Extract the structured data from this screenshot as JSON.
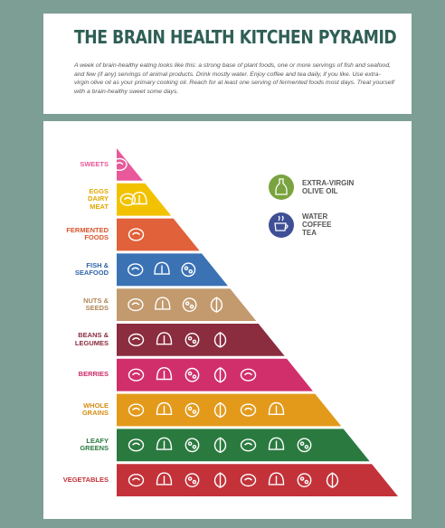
{
  "header": {
    "title": "THE BRAIN HEALTH KITCHEN PYRAMID",
    "intro": "A week of brain-healthy eating looks like this: a strong base of plant foods, one or more servings of fish and seafood, and few (if any) servings of animal products. Drink mostly water. Enjoy coffee and tea daily, if you like. Use extra-virgin olive oil as your primary cooking oil. Reach for at least one serving of fermented foods most days. Treat yourself with a brain-healthy sweet some days."
  },
  "tiers": [
    {
      "label": "SWEETS",
      "color": "#e8589a",
      "text_color": "#e8589a",
      "icons": [
        "candy-icon"
      ]
    },
    {
      "label": "EGGS\nDAIRY\nMEAT",
      "color": "#f2c200",
      "text_color": "#e1a800",
      "icons": [
        "chicken-leg-icon",
        "cheese-icon"
      ]
    },
    {
      "label": "FERMENTED\nFOODS",
      "color": "#e0613a",
      "text_color": "#d9572e",
      "icons": [
        "jar-icon"
      ]
    },
    {
      "label": "FISH &\nSEAFOOD",
      "color": "#3a72b4",
      "text_color": "#2f65a8",
      "icons": [
        "fish-icon",
        "shrimp-icon",
        "clam-icon"
      ]
    },
    {
      "label": "NUTS &\nSEEDS",
      "color": "#c29a6e",
      "text_color": "#b08658",
      "icons": [
        "almond-icon",
        "walnut-icon",
        "cashew-icon",
        "hazelnut-icon"
      ]
    },
    {
      "label": "BEANS &\nLEGUMES",
      "color": "#8b2c3f",
      "text_color": "#8b2c3f",
      "icons": [
        "bean-icon",
        "peapod-icon",
        "lentil-icon",
        "beans-icon"
      ]
    },
    {
      "label": "BERRIES",
      "color": "#d02f6c",
      "text_color": "#cc2b66",
      "icons": [
        "strawberry-icon",
        "blackberry-icon",
        "cherry-icon",
        "blueberry-icon",
        "raspberry-icon"
      ]
    },
    {
      "label": "WHOLE\nGRAINS",
      "color": "#e39a1b",
      "text_color": "#d48e12",
      "icons": [
        "pasta-icon",
        "wheat-icon",
        "oats-icon",
        "rice-icon",
        "grain-icon",
        "barley-icon"
      ]
    },
    {
      "label": "LEAFY\nGREENS",
      "color": "#2a7a3f",
      "text_color": "#2a7a3f",
      "icons": [
        "leaf-icon",
        "cabbage-icon",
        "kale-icon",
        "spinach-icon",
        "lettuce-icon",
        "chard-icon",
        "collard-icon"
      ]
    },
    {
      "label": "VEGETABLES",
      "color": "#c33239",
      "text_color": "#c33239",
      "icons": [
        "beet-icon",
        "carrot-icon",
        "mushroom-icon",
        "radish-icon",
        "broccoli-icon",
        "onion-icon",
        "squash-icon",
        "artichoke-icon"
      ]
    }
  ],
  "legend": [
    {
      "label": "EXTRA-VIRGIN\nOLIVE OIL",
      "color": "#7aa33f",
      "icon": "olive-oil-bottle-icon"
    },
    {
      "label": "WATER\nCOFFEE\nTEA",
      "color": "#3f4f96",
      "icon": "coffee-cup-icon"
    }
  ]
}
